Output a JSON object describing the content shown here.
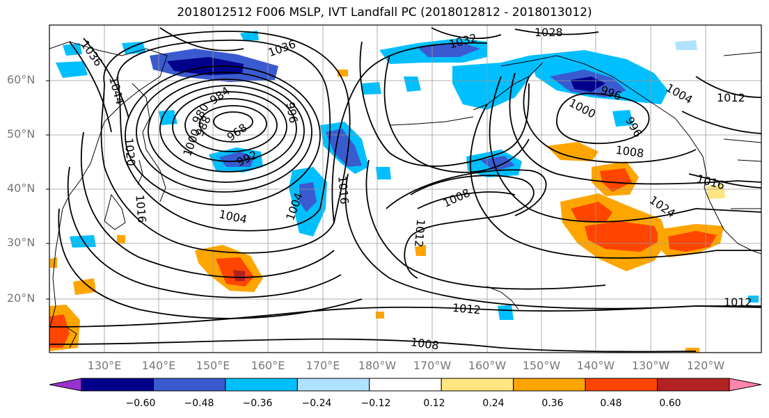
{
  "title": "2018012512 F006 MSLP, IVT Landfall PC (2018012812 - 2018013012)",
  "lat_labels": [
    "60°N",
    "50°N",
    "40°N",
    "30°N",
    "20°N"
  ],
  "lon_labels": [
    "130°E",
    "140°E",
    "150°E",
    "160°E",
    "170°E",
    "180°W",
    "170°W",
    "160°W",
    "150°W",
    "140°W",
    "130°W",
    "120°W"
  ],
  "colorbar": {
    "ticks": [
      "−0.60",
      "−0.48",
      "−0.36",
      "−0.24",
      "−0.12",
      "0.12",
      "0.24",
      "0.36",
      "0.48",
      "0.60"
    ],
    "colors": [
      "#9932cc",
      "#00008b",
      "#3a5bd0",
      "#00bfff",
      "#b0e2ff",
      "#ffffff",
      "#ffe680",
      "#ffa500",
      "#ff4500",
      "#b22222",
      "#ff85ad"
    ]
  },
  "contour_labels": [
    "1036",
    "1044",
    "1036",
    "1032",
    "1028",
    "1020",
    "1016",
    "1016",
    "1012",
    "1008",
    "1008",
    "1004",
    "1000",
    "1004",
    "1012",
    "1012",
    "1008",
    "1024",
    "1016",
    "1004",
    "1000",
    "996",
    "992",
    "988",
    "984",
    "980",
    "968",
    "996",
    "996",
    "1012"
  ]
}
